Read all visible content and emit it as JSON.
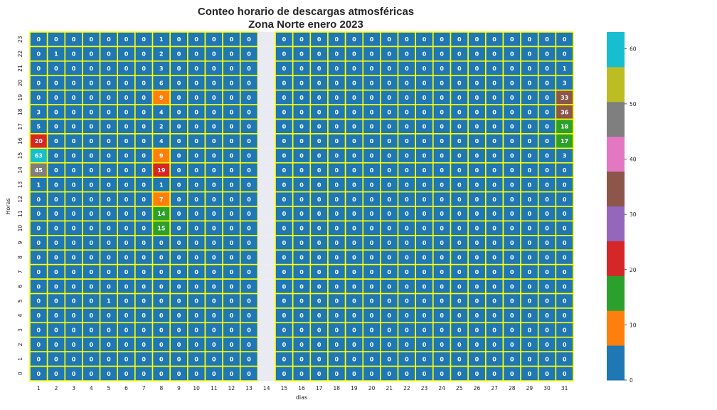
{
  "chart_data": {
    "type": "heatmap",
    "title": "Conteo horario de descargas atmosféricas",
    "subtitle": "Zona Norte enero 2023",
    "xlabel": "dias",
    "ylabel": "Horas",
    "x_categories": [
      "1",
      "2",
      "3",
      "4",
      "5",
      "6",
      "7",
      "8",
      "9",
      "10",
      "11",
      "12",
      "13",
      "14",
      "15",
      "16",
      "17",
      "18",
      "19",
      "20",
      "21",
      "22",
      "23",
      "24",
      "25",
      "26",
      "27",
      "28",
      "29",
      "30",
      "31"
    ],
    "y_categories": [
      "23",
      "22",
      "21",
      "20",
      "19",
      "18",
      "17",
      "16",
      "15",
      "14",
      "13",
      "12",
      "11",
      "10",
      "9",
      "8",
      "7",
      "6",
      "5",
      "4",
      "3",
      "2",
      "1",
      "0"
    ],
    "missing_columns": [
      "14"
    ],
    "values": [
      [
        0,
        0,
        0,
        0,
        0,
        0,
        0,
        1,
        0,
        0,
        0,
        0,
        0,
        null,
        0,
        0,
        0,
        0,
        0,
        0,
        0,
        0,
        0,
        0,
        0,
        0,
        0,
        0,
        0,
        0,
        0
      ],
      [
        0,
        1,
        0,
        0,
        0,
        0,
        0,
        2,
        0,
        0,
        0,
        0,
        0,
        null,
        0,
        0,
        0,
        0,
        0,
        0,
        0,
        0,
        0,
        0,
        0,
        0,
        0,
        0,
        0,
        0,
        0
      ],
      [
        0,
        0,
        0,
        0,
        0,
        0,
        0,
        3,
        0,
        0,
        0,
        0,
        0,
        null,
        0,
        0,
        0,
        0,
        0,
        0,
        0,
        0,
        0,
        0,
        0,
        0,
        0,
        0,
        0,
        0,
        1
      ],
      [
        0,
        0,
        0,
        0,
        0,
        0,
        0,
        6,
        0,
        0,
        0,
        0,
        0,
        null,
        0,
        0,
        0,
        0,
        0,
        0,
        0,
        0,
        0,
        0,
        0,
        0,
        0,
        0,
        0,
        0,
        3
      ],
      [
        0,
        0,
        0,
        0,
        0,
        0,
        0,
        9,
        0,
        0,
        0,
        0,
        0,
        null,
        0,
        0,
        0,
        0,
        0,
        0,
        0,
        0,
        0,
        0,
        0,
        0,
        0,
        0,
        0,
        0,
        33
      ],
      [
        3,
        0,
        0,
        0,
        0,
        0,
        0,
        4,
        0,
        0,
        0,
        0,
        0,
        null,
        0,
        0,
        0,
        0,
        0,
        0,
        0,
        0,
        0,
        0,
        0,
        0,
        0,
        0,
        0,
        0,
        36
      ],
      [
        5,
        0,
        0,
        0,
        0,
        0,
        0,
        2,
        0,
        0,
        0,
        0,
        0,
        null,
        0,
        0,
        0,
        0,
        0,
        0,
        0,
        0,
        0,
        0,
        0,
        0,
        0,
        0,
        0,
        0,
        18
      ],
      [
        20,
        0,
        0,
        0,
        0,
        0,
        0,
        4,
        0,
        0,
        0,
        0,
        0,
        null,
        0,
        0,
        0,
        0,
        0,
        0,
        0,
        0,
        0,
        0,
        0,
        0,
        0,
        0,
        0,
        0,
        17
      ],
      [
        63,
        0,
        0,
        0,
        0,
        0,
        0,
        9,
        0,
        0,
        0,
        0,
        0,
        null,
        0,
        0,
        0,
        0,
        0,
        0,
        0,
        0,
        0,
        0,
        0,
        0,
        0,
        0,
        0,
        0,
        3
      ],
      [
        45,
        0,
        0,
        0,
        0,
        0,
        0,
        19,
        0,
        0,
        0,
        0,
        0,
        null,
        0,
        0,
        0,
        0,
        0,
        0,
        0,
        0,
        0,
        0,
        0,
        0,
        0,
        0,
        0,
        0,
        0
      ],
      [
        1,
        0,
        0,
        0,
        0,
        0,
        0,
        1,
        0,
        0,
        0,
        0,
        0,
        null,
        0,
        0,
        0,
        0,
        0,
        0,
        0,
        0,
        0,
        0,
        0,
        0,
        0,
        0,
        0,
        0,
        0
      ],
      [
        0,
        0,
        0,
        0,
        0,
        0,
        0,
        7,
        0,
        0,
        0,
        0,
        0,
        null,
        0,
        0,
        0,
        0,
        0,
        0,
        0,
        0,
        0,
        0,
        0,
        0,
        0,
        0,
        0,
        0,
        0
      ],
      [
        0,
        0,
        0,
        0,
        0,
        0,
        0,
        14,
        0,
        0,
        0,
        0,
        0,
        null,
        0,
        0,
        0,
        0,
        0,
        0,
        0,
        0,
        0,
        0,
        0,
        0,
        0,
        0,
        0,
        0,
        0
      ],
      [
        0,
        0,
        0,
        0,
        0,
        0,
        0,
        15,
        0,
        0,
        0,
        0,
        0,
        null,
        0,
        0,
        0,
        0,
        0,
        0,
        0,
        0,
        0,
        0,
        0,
        0,
        0,
        0,
        0,
        0,
        0
      ],
      [
        0,
        0,
        0,
        0,
        0,
        0,
        0,
        0,
        0,
        0,
        0,
        0,
        0,
        null,
        0,
        0,
        0,
        0,
        0,
        0,
        0,
        0,
        0,
        0,
        0,
        0,
        0,
        0,
        0,
        0,
        0
      ],
      [
        0,
        0,
        0,
        0,
        0,
        0,
        0,
        0,
        0,
        0,
        0,
        0,
        0,
        null,
        0,
        0,
        0,
        0,
        0,
        0,
        0,
        0,
        0,
        0,
        0,
        0,
        0,
        0,
        0,
        0,
        0
      ],
      [
        0,
        0,
        0,
        0,
        0,
        0,
        0,
        0,
        0,
        0,
        0,
        0,
        0,
        null,
        0,
        0,
        0,
        0,
        0,
        0,
        0,
        0,
        0,
        0,
        0,
        0,
        0,
        0,
        0,
        0,
        0
      ],
      [
        0,
        0,
        0,
        0,
        0,
        0,
        0,
        0,
        0,
        0,
        0,
        0,
        0,
        null,
        0,
        0,
        0,
        0,
        0,
        0,
        0,
        0,
        0,
        0,
        0,
        0,
        0,
        0,
        0,
        0,
        0
      ],
      [
        0,
        0,
        0,
        0,
        1,
        0,
        0,
        0,
        0,
        0,
        0,
        0,
        0,
        null,
        0,
        0,
        0,
        0,
        0,
        0,
        0,
        0,
        0,
        0,
        0,
        0,
        0,
        0,
        0,
        0,
        0
      ],
      [
        0,
        0,
        0,
        0,
        0,
        0,
        0,
        0,
        0,
        0,
        0,
        0,
        0,
        null,
        0,
        0,
        0,
        0,
        0,
        0,
        0,
        0,
        0,
        0,
        0,
        0,
        0,
        0,
        0,
        0,
        0
      ],
      [
        0,
        0,
        0,
        0,
        0,
        0,
        0,
        0,
        0,
        0,
        0,
        0,
        0,
        null,
        0,
        0,
        0,
        0,
        0,
        0,
        0,
        0,
        0,
        0,
        0,
        0,
        0,
        0,
        0,
        0,
        0
      ],
      [
        0,
        0,
        0,
        0,
        0,
        0,
        0,
        0,
        0,
        0,
        0,
        0,
        0,
        null,
        0,
        0,
        0,
        0,
        0,
        0,
        0,
        0,
        0,
        0,
        0,
        0,
        0,
        0,
        0,
        0,
        0
      ],
      [
        0,
        0,
        0,
        0,
        0,
        0,
        0,
        0,
        0,
        0,
        0,
        0,
        0,
        null,
        0,
        0,
        0,
        0,
        0,
        0,
        0,
        0,
        0,
        0,
        0,
        0,
        0,
        0,
        0,
        0,
        0
      ],
      [
        0,
        0,
        0,
        0,
        0,
        0,
        0,
        0,
        0,
        0,
        0,
        0,
        0,
        null,
        0,
        0,
        0,
        0,
        0,
        0,
        0,
        0,
        0,
        0,
        0,
        0,
        0,
        0,
        0,
        0,
        0
      ]
    ],
    "colorbar": {
      "range": [
        0,
        63
      ],
      "ticks": [
        "0",
        "10",
        "20",
        "30",
        "40",
        "50",
        "60"
      ],
      "palette": [
        "#1f77b4",
        "#ff7f0e",
        "#2ca02c",
        "#d62728",
        "#9467bd",
        "#8c564b",
        "#e377c2",
        "#7f7f7f",
        "#bcbd22",
        "#17becf"
      ]
    },
    "cell_border_color": "#ffff00",
    "missing_color": "#eaeaf2",
    "grid": false,
    "legend": "colorbar-right"
  }
}
